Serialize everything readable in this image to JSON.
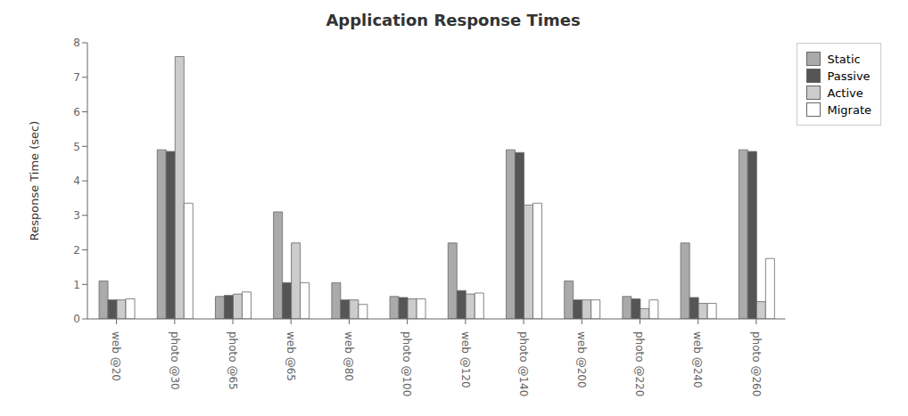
{
  "chart_data": {
    "type": "bar",
    "title": "Application Response Times",
    "ylabel": "Response Time (sec)",
    "categories": [
      "web @20",
      "photo @30",
      "photo @65",
      "web @65",
      "web @80",
      "photo @100",
      "web @120",
      "photo @140",
      "web @200",
      "photo @220",
      "web @240",
      "photo @260"
    ],
    "series": [
      {
        "name": "Static",
        "color": "#aaaaaa",
        "values": [
          1.1,
          4.9,
          0.65,
          3.1,
          1.05,
          0.65,
          2.2,
          4.9,
          1.1,
          0.65,
          2.2,
          4.9
        ]
      },
      {
        "name": "Passive",
        "color": "#555555",
        "values": [
          0.55,
          4.85,
          0.68,
          1.05,
          0.55,
          0.62,
          0.82,
          4.82,
          0.55,
          0.58,
          0.62,
          4.85
        ]
      },
      {
        "name": "Active",
        "color": "#cccccc",
        "values": [
          0.55,
          7.6,
          0.72,
          2.2,
          0.55,
          0.58,
          0.72,
          3.3,
          0.55,
          0.3,
          0.45,
          0.5
        ]
      },
      {
        "name": "Migrate",
        "color": "#ffffff",
        "values": [
          0.58,
          3.35,
          0.78,
          1.05,
          0.42,
          0.58,
          0.75,
          3.35,
          0.55,
          0.55,
          0.45,
          1.75
        ]
      }
    ],
    "ylim": [
      0,
      8
    ],
    "yticks": [
      0,
      1,
      2,
      3,
      4,
      5,
      6,
      7,
      8
    ],
    "grid": false,
    "legend": "upper right"
  }
}
